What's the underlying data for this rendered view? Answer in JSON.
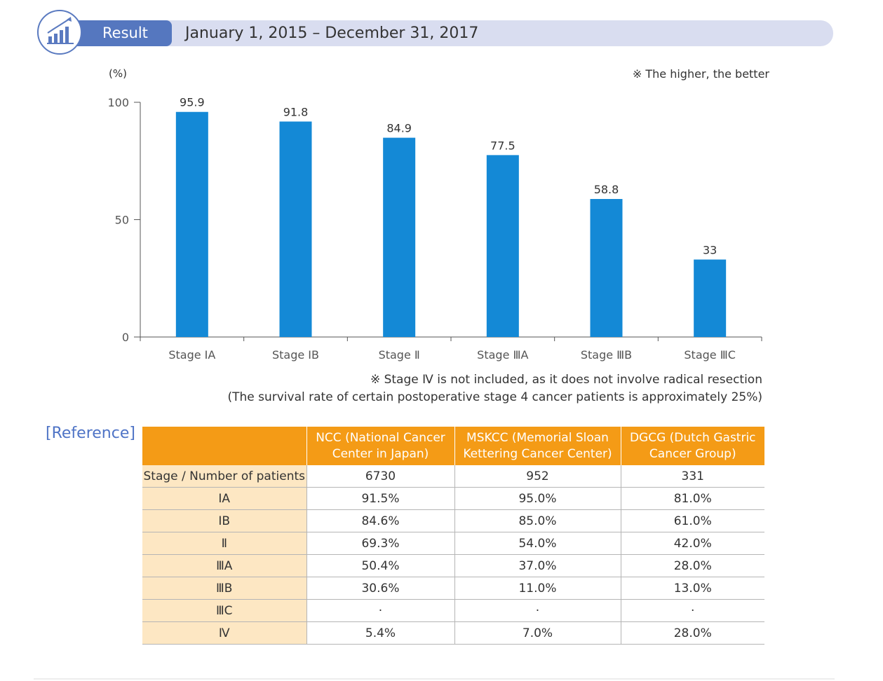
{
  "header": {
    "badge_label": "Result",
    "period": "January 1, 2015 – December 31, 2017",
    "logo_icon": "rising-chart-icon"
  },
  "chart_note": "※ The higher, the better",
  "chart_data": {
    "type": "bar",
    "ylabel": "(%)",
    "ylim": [
      0,
      100
    ],
    "yticks": [
      0,
      50,
      100
    ],
    "categories": [
      "Stage ⅠA",
      "Stage ⅠB",
      "Stage Ⅱ",
      "Stage ⅢA",
      "Stage ⅢB",
      "Stage ⅢC"
    ],
    "values": [
      95.9,
      91.8,
      84.9,
      77.5,
      58.8,
      33
    ],
    "value_labels": [
      "95.9",
      "91.8",
      "84.9",
      "77.5",
      "58.8",
      "33"
    ],
    "bar_color": "#1489d6",
    "grid": false
  },
  "footnotes": {
    "line1": "※ Stage Ⅳ is not included, as it does not involve radical resection",
    "line2": "(The survival rate of certain postoperative stage 4 cancer patients is approximately 25%)"
  },
  "reference": {
    "title": "[Reference]",
    "headers": [
      "",
      "NCC (National Cancer Center in Japan)",
      "MSKCC (Memorial Sloan Kettering Cancer Center)",
      "DGCG (Dutch Gastric Cancer Group)"
    ],
    "rows": [
      [
        "Stage / Number of patients",
        "6730",
        "952",
        "331"
      ],
      [
        "ⅠA",
        "91.5%",
        "95.0%",
        "81.0%"
      ],
      [
        "ⅠB",
        "84.6%",
        "85.0%",
        "61.0%"
      ],
      [
        "Ⅱ",
        "69.3%",
        "54.0%",
        "42.0%"
      ],
      [
        "ⅢA",
        "50.4%",
        "37.0%",
        "28.0%"
      ],
      [
        "ⅢB",
        "30.6%",
        "11.0%",
        "13.0%"
      ],
      [
        "ⅢC",
        "·",
        "·",
        "·"
      ],
      [
        "Ⅳ",
        "5.4%",
        "7.0%",
        "28.0%"
      ]
    ]
  },
  "colors": {
    "header_bar": "#d9ddf0",
    "badge": "#5577bf",
    "table_header": "#f49b16",
    "stage_cell": "#fde7c3",
    "reference_title": "#4f74c6"
  }
}
